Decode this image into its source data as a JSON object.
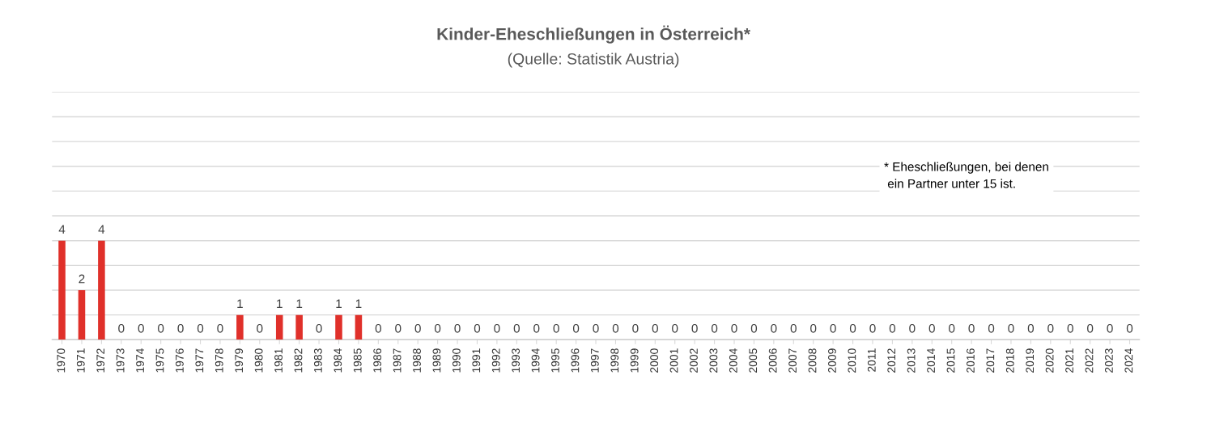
{
  "chart_data": {
    "type": "bar",
    "title": "Kinder-Eheschließungen in Österreich*",
    "subtitle": "(Quelle: Statistik Austria)",
    "categories": [
      "1970",
      "1971",
      "1972",
      "1973",
      "1974",
      "1975",
      "1976",
      "1977",
      "1978",
      "1979",
      "1980",
      "1981",
      "1982",
      "1983",
      "1984",
      "1985",
      "1986",
      "1987",
      "1988",
      "1989",
      "1990",
      "1991",
      "1992",
      "1993",
      "1994",
      "1995",
      "1996",
      "1997",
      "1998",
      "1999",
      "2000",
      "2001",
      "2002",
      "2003",
      "2004",
      "2005",
      "2006",
      "2007",
      "2008",
      "2009",
      "2010",
      "2011",
      "2012",
      "2013",
      "2014",
      "2015",
      "2016",
      "2017",
      "2018",
      "2019",
      "2020",
      "2021",
      "2022",
      "2023",
      "2024"
    ],
    "values": [
      4,
      2,
      4,
      0,
      0,
      0,
      0,
      0,
      0,
      1,
      0,
      1,
      1,
      0,
      1,
      1,
      0,
      0,
      0,
      0,
      0,
      0,
      0,
      0,
      0,
      0,
      0,
      0,
      0,
      0,
      0,
      0,
      0,
      0,
      0,
      0,
      0,
      0,
      0,
      0,
      0,
      0,
      0,
      0,
      0,
      0,
      0,
      0,
      0,
      0,
      0,
      0,
      0,
      0,
      0
    ],
    "color": "#e0302a",
    "data_labels": true,
    "ylim": [
      0,
      10
    ],
    "yticks": [
      {
        "value": 0,
        "label": null
      },
      {
        "value": 1,
        "label": null
      },
      {
        "value": 2,
        "label": null
      },
      {
        "value": 3,
        "label": null
      },
      {
        "value": 4,
        "label": null
      },
      {
        "value": 5,
        "label": null
      },
      {
        "value": 6,
        "label": null
      },
      {
        "value": 7,
        "label": null
      },
      {
        "value": 8,
        "label": null
      },
      {
        "value": 9,
        "label": null
      },
      {
        "value": 10,
        "label": null
      }
    ],
    "grid": "y",
    "tick_labels": "x",
    "legend": false,
    "annotations": [
      "* Eheschließungen, bei denen\n ein Partner unter 15 ist."
    ]
  }
}
